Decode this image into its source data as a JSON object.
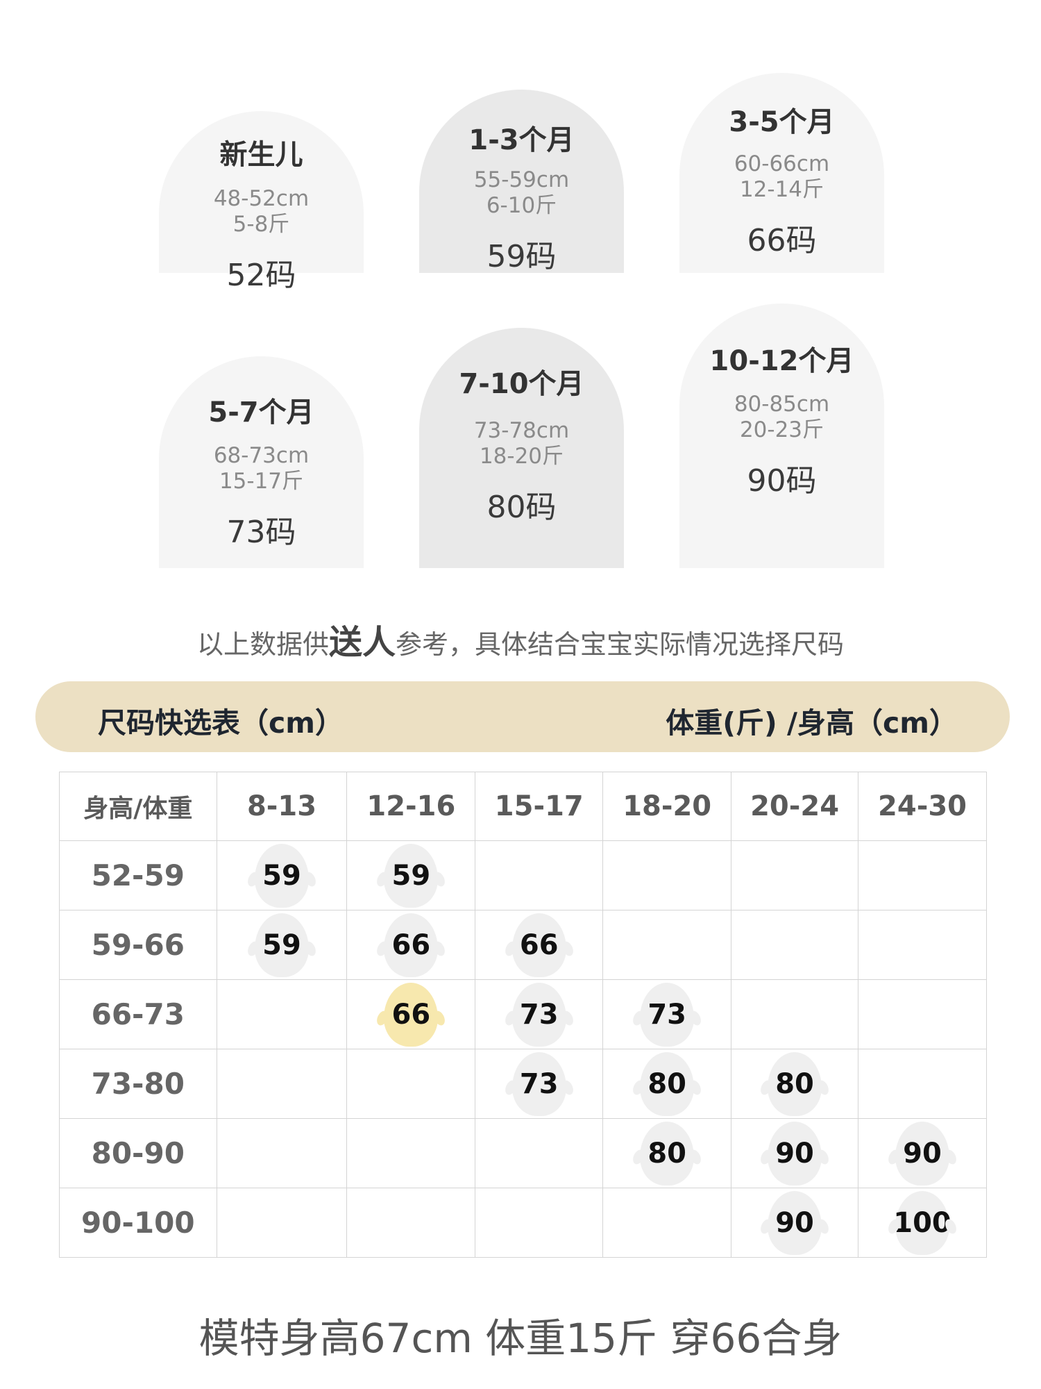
{
  "arches": [
    {
      "title": "新生儿",
      "height": "48-52cm",
      "weight": "5-8斤",
      "size": "52码",
      "color": "#f5f5f5"
    },
    {
      "title": "1-3个月",
      "height": "55-59cm",
      "weight": "6-10斤",
      "size": "59码",
      "color": "#e9e9e9"
    },
    {
      "title": "3-5个月",
      "height": "60-66cm",
      "weight": "12-14斤",
      "size": "66码",
      "color": "#f5f5f5"
    },
    {
      "title": "5-7个月",
      "height": "68-73cm",
      "weight": "15-17斤",
      "size": "73码",
      "color": "#f5f5f5"
    },
    {
      "title": "7-10个月",
      "height": "73-78cm",
      "weight": "18-20斤",
      "size": "80码",
      "color": "#e9e9e9"
    },
    {
      "title": "10-12个月",
      "height": "80-85cm",
      "weight": "20-23斤",
      "size": "90码",
      "color": "#f5f5f5"
    }
  ],
  "note": {
    "before": "以上数据供",
    "bold": "送人",
    "after": "参考，具体结合宝宝实际情况选择尺码"
  },
  "banner": {
    "left": "尺码快选表（cm）",
    "right": "体重(斤) /身高（cm）",
    "color": "#ece0c3"
  },
  "table": {
    "corner": "身高/体重",
    "columns": [
      "8-13",
      "12-16",
      "15-17",
      "18-20",
      "20-24",
      "24-30"
    ],
    "rows": [
      {
        "label": "52-59",
        "cells": [
          "59",
          "59",
          null,
          null,
          null,
          null
        ]
      },
      {
        "label": "59-66",
        "cells": [
          "59",
          "66",
          "66",
          null,
          null,
          null
        ]
      },
      {
        "label": "66-73",
        "cells": [
          null,
          "66",
          "73",
          "73",
          null,
          null
        ]
      },
      {
        "label": "73-80",
        "cells": [
          null,
          null,
          "73",
          "80",
          "80",
          null
        ]
      },
      {
        "label": "80-90",
        "cells": [
          null,
          null,
          null,
          "80",
          "90",
          "90"
        ]
      },
      {
        "label": "90-100",
        "cells": [
          null,
          null,
          null,
          null,
          "90",
          "100"
        ]
      }
    ],
    "highlight": {
      "row": 2,
      "col": 1,
      "color": "#f7e8ae"
    }
  },
  "caption": "模特身高67cm 体重15斤 穿66合身"
}
